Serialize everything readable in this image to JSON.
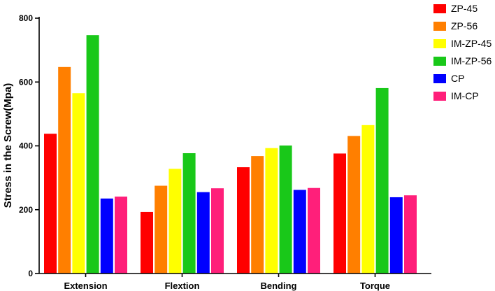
{
  "chart_data": {
    "type": "bar",
    "title": "",
    "xlabel": "",
    "ylabel": "Stress in the Screw(Mpa)",
    "ylim": [
      0,
      800
    ],
    "yticks": [
      0,
      200,
      400,
      600,
      800
    ],
    "grid": false,
    "legend_position": "top-right",
    "categories": [
      "Extension",
      "Flextion",
      "Bending",
      "Torque"
    ],
    "series": [
      {
        "name": "ZP-45",
        "color": "#ff0000",
        "values": [
          438,
          193,
          333,
          376
        ]
      },
      {
        "name": "ZP-56",
        "color": "#ff7f00",
        "values": [
          647,
          275,
          368,
          431
        ]
      },
      {
        "name": "IM-ZP-45",
        "color": "#ffff00",
        "values": [
          565,
          328,
          393,
          465
        ]
      },
      {
        "name": "IM-ZP-56",
        "color": "#19c819",
        "values": [
          747,
          377,
          401,
          581
        ]
      },
      {
        "name": "CP",
        "color": "#0000ff",
        "values": [
          235,
          255,
          262,
          239
        ]
      },
      {
        "name": "IM-CP",
        "color": "#ff1f7a",
        "values": [
          241,
          267,
          268,
          245
        ]
      }
    ]
  }
}
